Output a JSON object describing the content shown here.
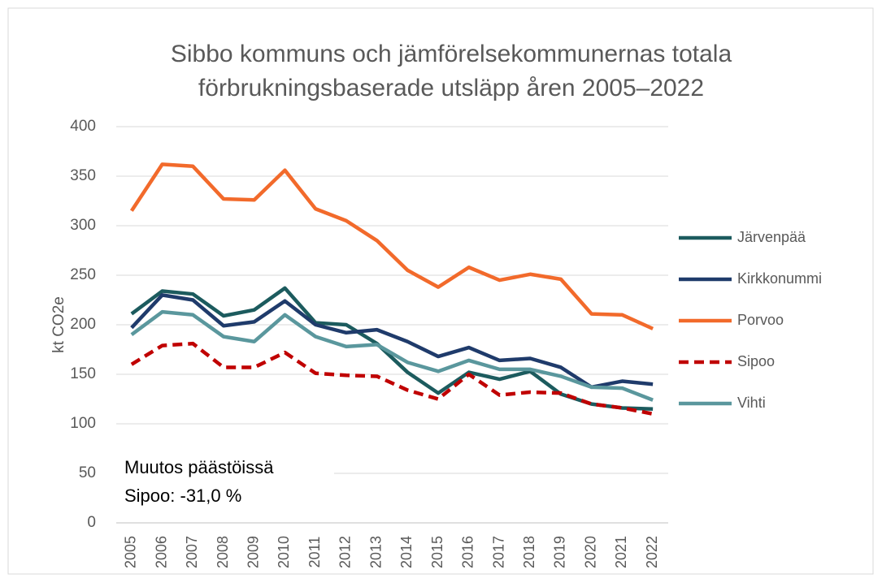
{
  "chart_data": {
    "type": "line",
    "title": [
      "Sibbo kommuns och jämförelsekommunernas totala",
      "förbrukningsbaserade utsläpp åren 2005–2022"
    ],
    "y_label": "kt CO2e",
    "categories": [
      "2005",
      "2006",
      "2007",
      "2008",
      "2009",
      "2010",
      "2011",
      "2012",
      "2013",
      "2014",
      "2015",
      "2016",
      "2017",
      "2018",
      "2019",
      "2020",
      "2021",
      "2022"
    ],
    "series": [
      {
        "name": "Järvenpää",
        "color": "#1c5b5e",
        "line_style": "solid",
        "values": [
          211,
          234,
          231,
          209,
          215,
          237,
          202,
          200,
          181,
          152,
          131,
          152,
          145,
          153,
          130,
          120,
          116,
          115
        ]
      },
      {
        "name": "Kirkkonummi",
        "color": "#1f3b6b",
        "line_style": "solid",
        "values": [
          197,
          230,
          225,
          199,
          203,
          224,
          200,
          192,
          195,
          183,
          168,
          177,
          164,
          166,
          157,
          137,
          143,
          140
        ]
      },
      {
        "name": "Porvoo",
        "color": "#f26a2b",
        "line_style": "solid",
        "values": [
          315,
          362,
          360,
          327,
          326,
          356,
          317,
          305,
          285,
          255,
          238,
          258,
          245,
          251,
          246,
          211,
          210,
          196
        ]
      },
      {
        "name": "Sipoo",
        "color": "#c00000",
        "line_style": "dashed",
        "values": [
          160,
          179,
          181,
          157,
          157,
          172,
          151,
          149,
          148,
          134,
          125,
          150,
          129,
          132,
          131,
          120,
          116,
          110
        ]
      },
      {
        "name": "Vihti",
        "color": "#5a979d",
        "line_style": "solid",
        "values": [
          190,
          213,
          210,
          188,
          183,
          210,
          188,
          178,
          180,
          162,
          153,
          164,
          155,
          155,
          148,
          137,
          136,
          124
        ]
      }
    ],
    "annotations": [
      "Muutos päästöissä",
      "Sipoo: -31,0 %"
    ],
    "ylim": [
      0,
      400
    ],
    "yticks": [
      0,
      50,
      100,
      150,
      200,
      250,
      300,
      350,
      400
    ],
    "grid": true,
    "legend": "right"
  }
}
